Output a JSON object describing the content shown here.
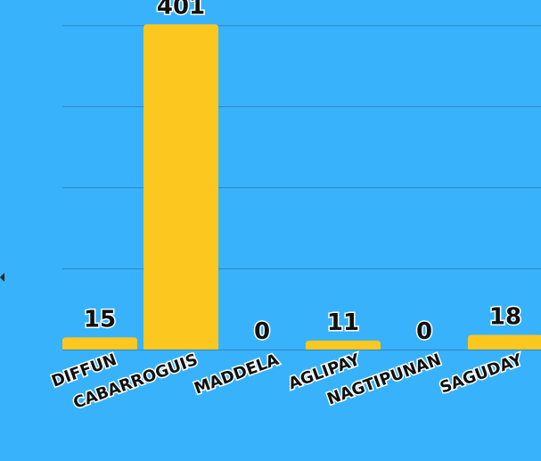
{
  "chart_data": {
    "type": "bar",
    "categories": [
      "DIFFUN",
      "CABARROGUIS",
      "MADDELA",
      "AGLIPAY",
      "NAGTIPUNAN",
      "SAGUDAY"
    ],
    "values": [
      15,
      401,
      0,
      11,
      0,
      18
    ],
    "value_labels": [
      "15",
      "401",
      "0",
      "11",
      "0",
      "18"
    ],
    "ylim": [
      0,
      420
    ],
    "grid": true,
    "colors": {
      "background": "#38b3fb",
      "bar": "#fcc81f",
      "gridline": "#2c86c8"
    }
  }
}
